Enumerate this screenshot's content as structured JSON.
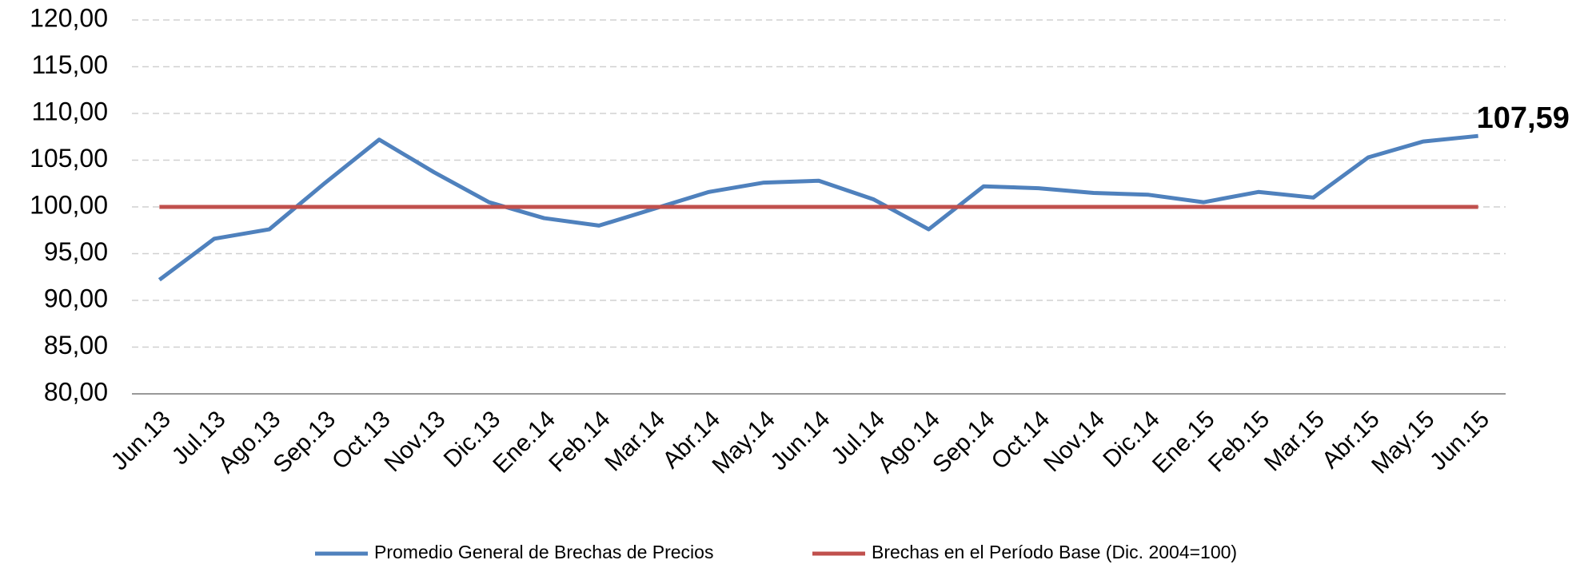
{
  "chart_data": {
    "type": "line",
    "categories": [
      "Jun.13",
      "Jul.13",
      "Ago.13",
      "Sep.13",
      "Oct.13",
      "Nov.13",
      "Dic.13",
      "Ene.14",
      "Feb.14",
      "Mar.14",
      "Abr.14",
      "May.14",
      "Jun.14",
      "Jul.14",
      "Ago.14",
      "Sep.14",
      "Oct.14",
      "Nov.14",
      "Dic.14",
      "Ene.15",
      "Feb.15",
      "Mar.15",
      "Abr.15",
      "May.15",
      "Jun.15"
    ],
    "series": [
      {
        "name": "Promedio General de Brechas de Precios",
        "color": "#4f81bd",
        "values": [
          92.2,
          96.6,
          97.6,
          102.5,
          107.2,
          103.7,
          100.5,
          98.8,
          98.0,
          99.8,
          101.6,
          102.6,
          102.8,
          100.8,
          97.6,
          102.2,
          102.0,
          101.5,
          101.3,
          100.5,
          101.6,
          101.0,
          105.3,
          107.0,
          107.59
        ],
        "value_labels": [
          null,
          null,
          null,
          null,
          null,
          null,
          null,
          null,
          null,
          null,
          null,
          null,
          null,
          null,
          null,
          null,
          null,
          null,
          null,
          null,
          null,
          null,
          null,
          null,
          "107,59"
        ]
      },
      {
        "name": "Brechas en el Período Base (Dic. 2004=100)",
        "color": "#c0504d",
        "values": [
          100,
          100,
          100,
          100,
          100,
          100,
          100,
          100,
          100,
          100,
          100,
          100,
          100,
          100,
          100,
          100,
          100,
          100,
          100,
          100,
          100,
          100,
          100,
          100,
          100
        ]
      }
    ],
    "ylim": [
      80,
      120
    ],
    "yticks": [
      {
        "value": 80,
        "label": "80,00"
      },
      {
        "value": 85,
        "label": "85,00"
      },
      {
        "value": 90,
        "label": "90,00"
      },
      {
        "value": 95,
        "label": "95,00"
      },
      {
        "value": 100,
        "label": "100,00"
      },
      {
        "value": 105,
        "label": "105,00"
      },
      {
        "value": 110,
        "label": "110,00"
      },
      {
        "value": 115,
        "label": "115,00"
      },
      {
        "value": 120,
        "label": "120,00"
      }
    ],
    "grid": true,
    "legend": "bottom"
  }
}
